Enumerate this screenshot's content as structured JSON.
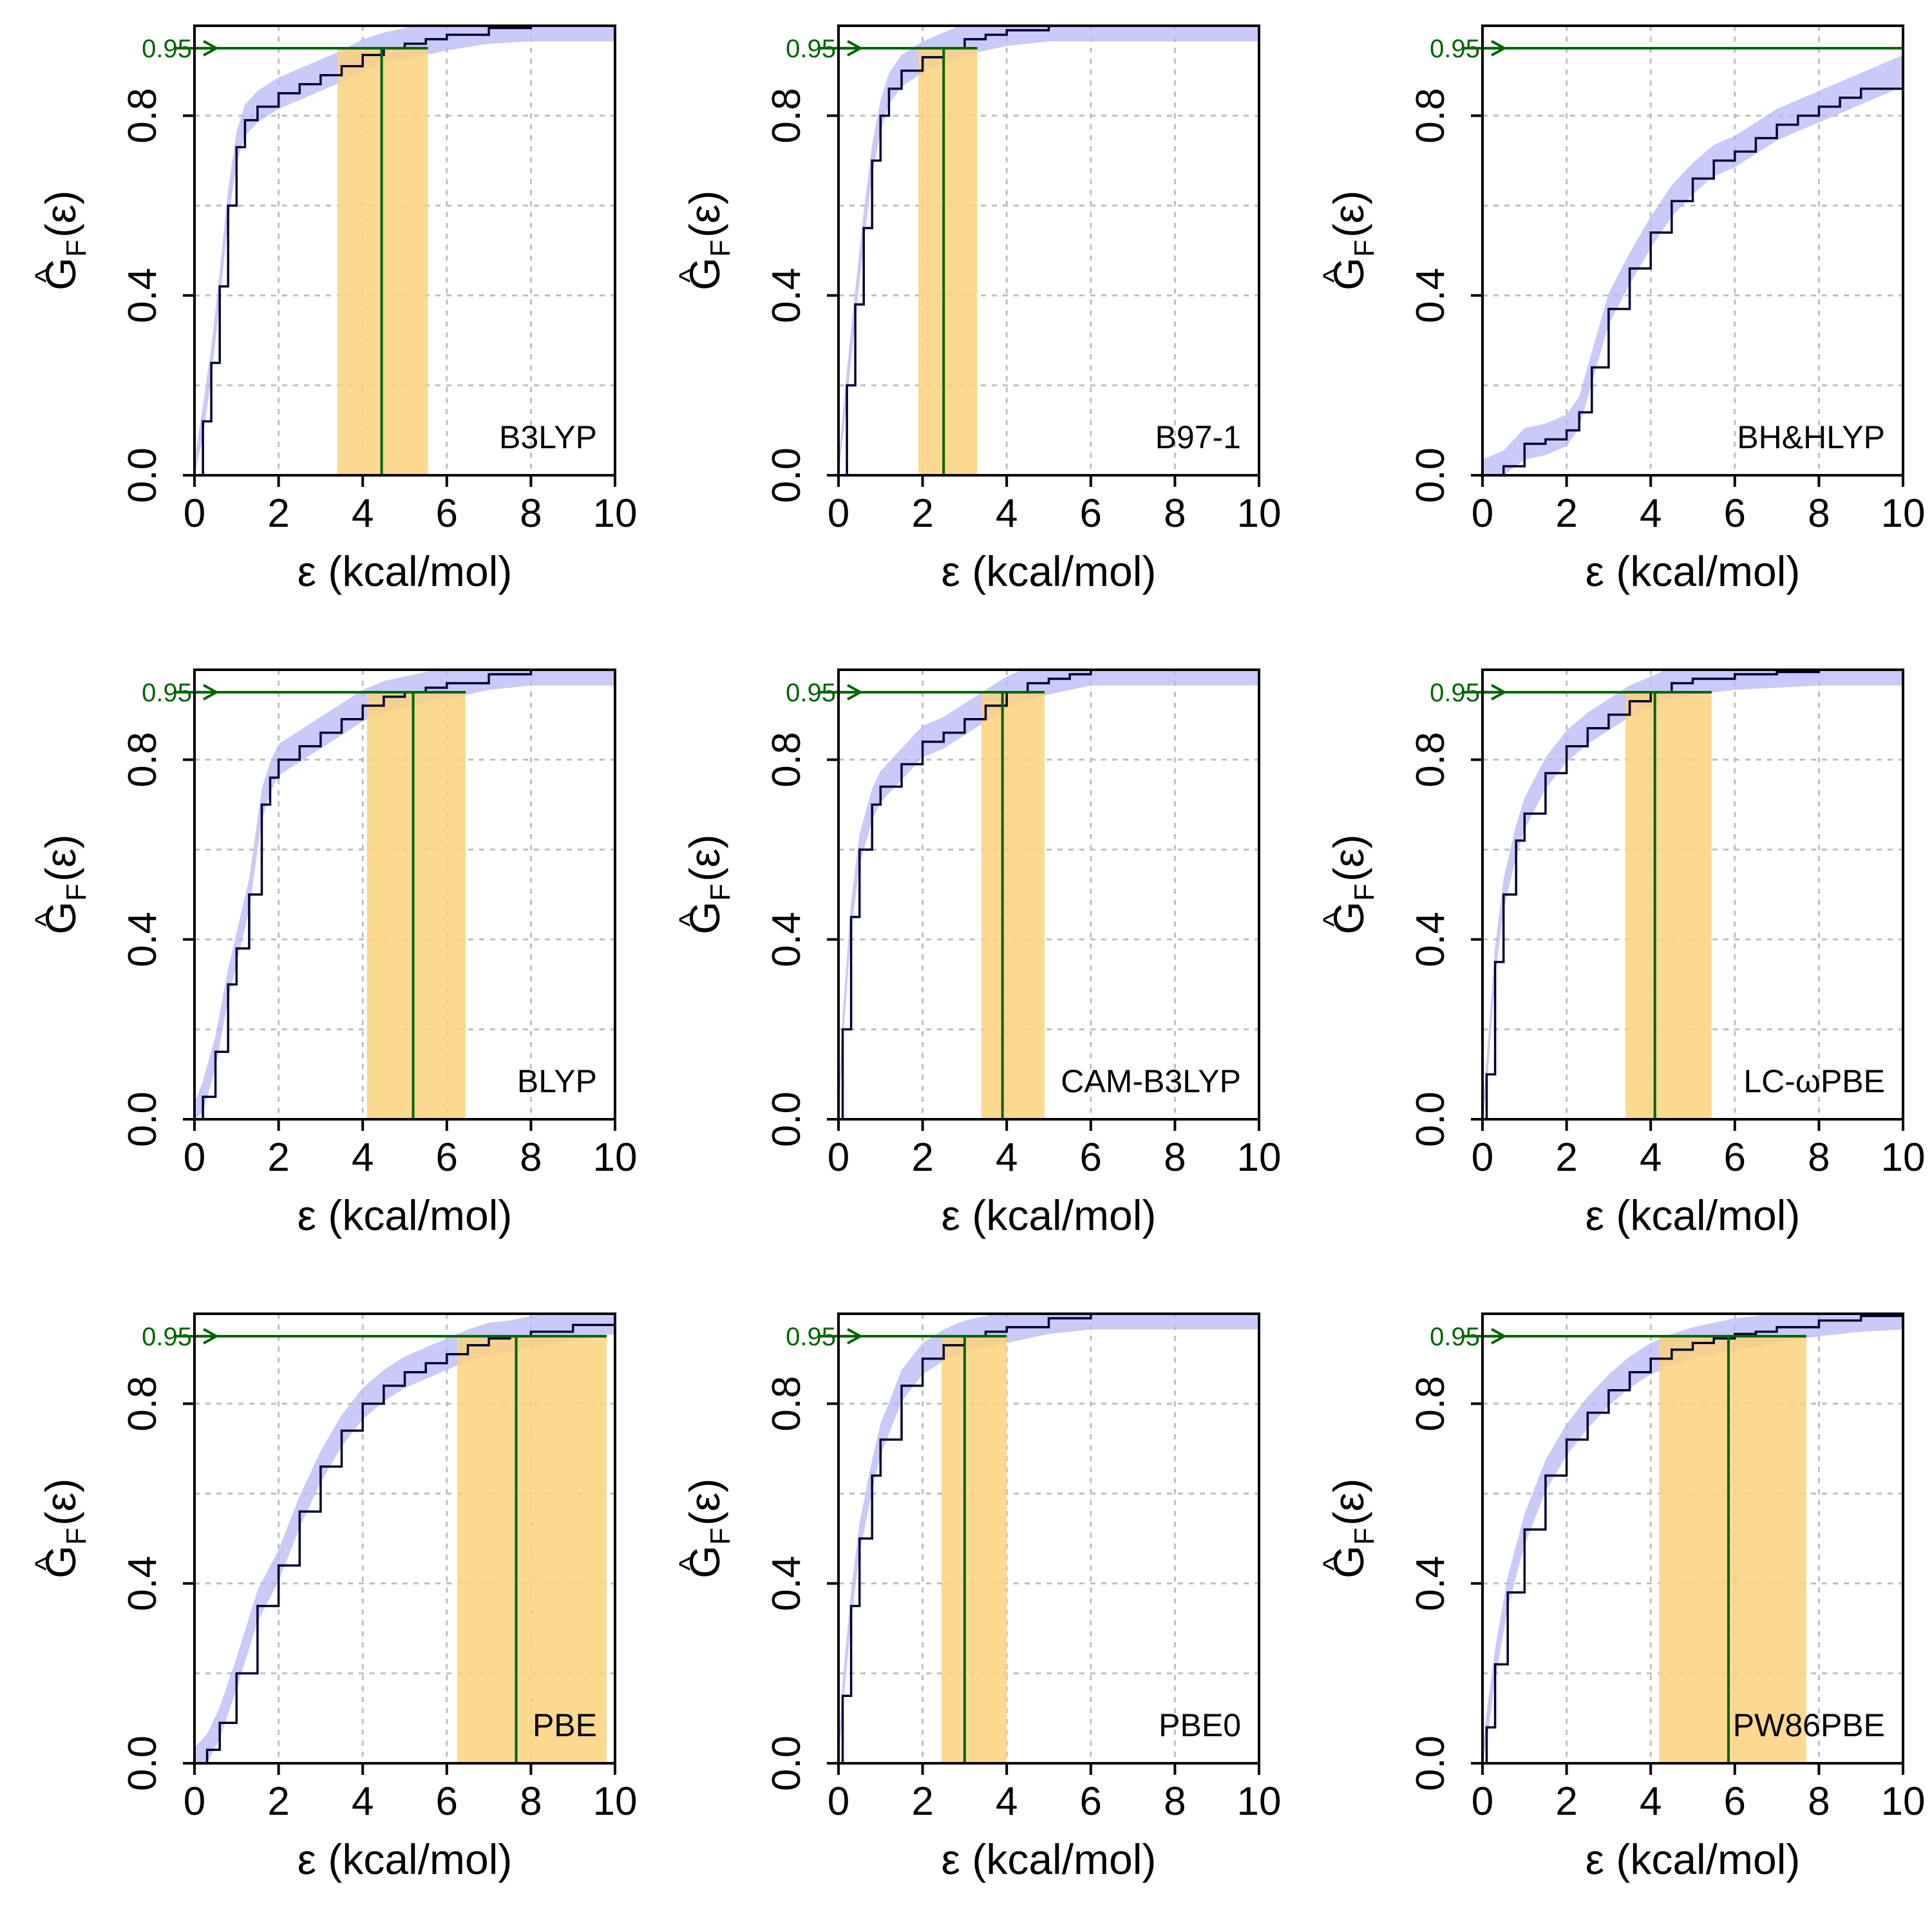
{
  "common": {
    "xlabel": "ε (kcal/mol)",
    "ylabel_main": "G",
    "ylabel_hat": "^",
    "ylabel_sub": "F",
    "ylabel_arg": "(ε)",
    "xlim": [
      0,
      10
    ],
    "ylim": [
      0,
      1
    ],
    "x_ticks": [
      "0",
      "2",
      "4",
      "6",
      "8",
      "10"
    ],
    "y_ticks": [
      "0.0",
      "0.4",
      "0.8"
    ],
    "threshold_label": "0.95",
    "threshold": 0.95,
    "colors": {
      "curve": "#000033",
      "band": "#b8b8f5",
      "quantile_interval": "#fcd27e",
      "quantile_line": "#006400",
      "grid": "#bfbfbf",
      "frame": "#000000"
    }
  },
  "chart_data": [
    {
      "type": "line",
      "title": "B3LYP",
      "q95": 4.45,
      "q95_interval": [
        3.4,
        5.55
      ],
      "x": [
        0,
        0.2,
        0.4,
        0.6,
        0.8,
        1.0,
        1.2,
        1.5,
        2,
        2.5,
        3,
        3.5,
        4,
        4.5,
        5,
        5.5,
        6,
        7,
        8,
        10
      ],
      "y": [
        0,
        0.12,
        0.25,
        0.42,
        0.6,
        0.73,
        0.79,
        0.82,
        0.85,
        0.87,
        0.89,
        0.91,
        0.935,
        0.95,
        0.96,
        0.97,
        0.98,
        0.995,
        1,
        1
      ]
    },
    {
      "type": "line",
      "title": "B97-1",
      "q95": 2.5,
      "q95_interval": [
        1.9,
        3.3
      ],
      "x": [
        0,
        0.2,
        0.4,
        0.6,
        0.8,
        1.0,
        1.2,
        1.5,
        2,
        2.5,
        3,
        3.5,
        4,
        5,
        6,
        10
      ],
      "y": [
        0,
        0.2,
        0.38,
        0.55,
        0.7,
        0.8,
        0.86,
        0.9,
        0.93,
        0.95,
        0.97,
        0.98,
        0.99,
        1,
        1,
        1
      ]
    },
    {
      "type": "line",
      "title": "BH&HLYP",
      "q95": null,
      "q95_interval": null,
      "x": [
        0,
        0.5,
        1,
        1.5,
        2,
        2.3,
        2.6,
        3,
        3.5,
        4,
        4.5,
        5,
        5.5,
        6,
        6.5,
        7,
        7.5,
        8,
        8.5,
        9,
        10
      ],
      "y": [
        0,
        0.02,
        0.07,
        0.08,
        0.1,
        0.14,
        0.24,
        0.37,
        0.46,
        0.54,
        0.61,
        0.66,
        0.7,
        0.72,
        0.75,
        0.78,
        0.8,
        0.82,
        0.84,
        0.86,
        0.9
      ]
    },
    {
      "type": "line",
      "title": "BLYP",
      "q95": 5.2,
      "q95_interval": [
        4.1,
        6.45
      ],
      "x": [
        0,
        0.2,
        0.5,
        0.8,
        1.0,
        1.3,
        1.6,
        1.8,
        2,
        2.5,
        3,
        3.5,
        4,
        4.5,
        5,
        5.5,
        6,
        7,
        8,
        10
      ],
      "y": [
        0,
        0.05,
        0.15,
        0.3,
        0.38,
        0.5,
        0.7,
        0.76,
        0.8,
        0.83,
        0.86,
        0.89,
        0.92,
        0.94,
        0.95,
        0.96,
        0.97,
        0.99,
        1,
        1
      ]
    },
    {
      "type": "line",
      "title": "CAM-B3LYP",
      "q95": 3.9,
      "q95_interval": [
        3.4,
        4.9
      ],
      "x": [
        0,
        0.1,
        0.3,
        0.5,
        0.8,
        1.0,
        1.5,
        2,
        2.5,
        3,
        3.5,
        4,
        4.5,
        5,
        5.5,
        6,
        7,
        10
      ],
      "y": [
        0,
        0.2,
        0.45,
        0.6,
        0.7,
        0.74,
        0.79,
        0.84,
        0.86,
        0.89,
        0.92,
        0.95,
        0.97,
        0.98,
        0.99,
        1,
        1,
        1
      ]
    },
    {
      "type": "line",
      "title": "LC-ωPBE",
      "q95": 4.1,
      "q95_interval": [
        3.4,
        5.45
      ],
      "x": [
        0,
        0.1,
        0.3,
        0.5,
        0.8,
        1.0,
        1.5,
        2,
        2.5,
        3,
        3.5,
        4,
        4.5,
        5,
        6,
        7,
        8,
        10
      ],
      "y": [
        0,
        0.1,
        0.35,
        0.5,
        0.62,
        0.68,
        0.77,
        0.83,
        0.87,
        0.9,
        0.93,
        0.95,
        0.97,
        0.98,
        0.99,
        0.995,
        1,
        1
      ]
    },
    {
      "type": "line",
      "title": "PBE",
      "q95": 7.65,
      "q95_interval": [
        6.25,
        9.8
      ],
      "x": [
        0,
        0.3,
        0.6,
        1.0,
        1.5,
        2,
        2.5,
        3,
        3.5,
        4,
        4.5,
        5,
        5.5,
        6,
        6.5,
        7,
        7.5,
        8,
        9,
        10
      ],
      "y": [
        0,
        0.03,
        0.09,
        0.2,
        0.35,
        0.44,
        0.56,
        0.66,
        0.74,
        0.8,
        0.84,
        0.87,
        0.89,
        0.91,
        0.93,
        0.945,
        0.95,
        0.96,
        0.975,
        0.99
      ]
    },
    {
      "type": "line",
      "title": "PBE0",
      "q95": 3.0,
      "q95_interval": [
        2.45,
        4.0
      ],
      "x": [
        0,
        0.1,
        0.3,
        0.5,
        0.8,
        1.0,
        1.5,
        2,
        2.5,
        3,
        3.5,
        4,
        5,
        6,
        7,
        10
      ],
      "y": [
        0,
        0.15,
        0.35,
        0.5,
        0.64,
        0.72,
        0.84,
        0.9,
        0.93,
        0.95,
        0.96,
        0.97,
        0.99,
        1,
        1,
        1
      ]
    },
    {
      "type": "line",
      "title": "PW86PBE",
      "q95": 5.85,
      "q95_interval": [
        4.2,
        7.7
      ],
      "x": [
        0,
        0.1,
        0.3,
        0.6,
        1.0,
        1.5,
        2,
        2.5,
        3,
        3.5,
        4,
        4.5,
        5,
        5.5,
        6,
        6.5,
        7,
        8,
        9,
        10
      ],
      "y": [
        0,
        0.08,
        0.22,
        0.38,
        0.52,
        0.64,
        0.72,
        0.78,
        0.83,
        0.87,
        0.9,
        0.92,
        0.935,
        0.945,
        0.955,
        0.96,
        0.97,
        0.985,
        0.995,
        1
      ]
    }
  ]
}
